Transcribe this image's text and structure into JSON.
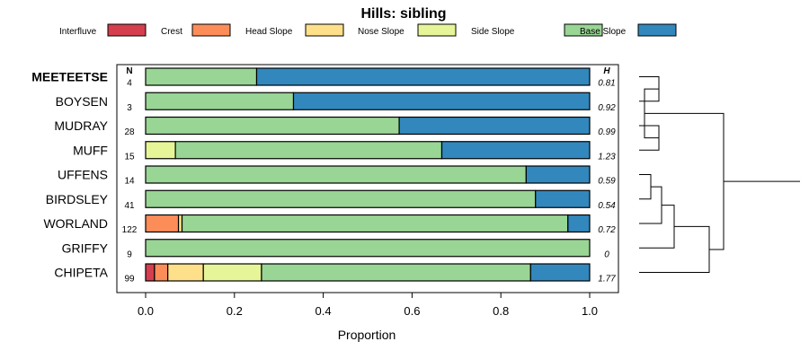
{
  "chart_data": {
    "type": "bar",
    "orientation": "horizontal",
    "stacked": true,
    "title": "Hills: sibling",
    "xlabel": "Proportion",
    "xlim": [
      0,
      1
    ],
    "xticks": [
      "0.0",
      "0.2",
      "0.4",
      "0.6",
      "0.8",
      "1.0"
    ],
    "n_header": "N",
    "h_header": "H",
    "classes": [
      {
        "name": "Interfluve",
        "color": "#d53e4f"
      },
      {
        "name": "Crest",
        "color": "#fc8d59"
      },
      {
        "name": "Head Slope",
        "color": "#fee08b"
      },
      {
        "name": "Nose Slope",
        "color": "#e6f598"
      },
      {
        "name": "Side Slope",
        "color": "#99d594"
      },
      {
        "name": "Base Slope",
        "color": "#3288bd"
      }
    ],
    "rows": [
      {
        "name": "MEETEETSE",
        "bold": true,
        "n": "4",
        "h": "0.81",
        "values": [
          0,
          0,
          0,
          0,
          0.25,
          0.75
        ]
      },
      {
        "name": "BOYSEN",
        "bold": false,
        "n": "3",
        "h": "0.92",
        "values": [
          0,
          0,
          0,
          0,
          0.333,
          0.667
        ]
      },
      {
        "name": "MUDRAY",
        "bold": false,
        "n": "28",
        "h": "0.99",
        "values": [
          0,
          0,
          0,
          0,
          0.571,
          0.429
        ]
      },
      {
        "name": "MUFF",
        "bold": false,
        "n": "15",
        "h": "1.23",
        "values": [
          0,
          0,
          0,
          0.067,
          0.6,
          0.333
        ]
      },
      {
        "name": "UFFENS",
        "bold": false,
        "n": "14",
        "h": "0.59",
        "values": [
          0,
          0,
          0,
          0,
          0.857,
          0.143
        ]
      },
      {
        "name": "BIRDSLEY",
        "bold": false,
        "n": "41",
        "h": "0.54",
        "values": [
          0,
          0,
          0,
          0,
          0.878,
          0.122
        ]
      },
      {
        "name": "WORLAND",
        "bold": false,
        "n": "122",
        "h": "0.72",
        "values": [
          0,
          0.074,
          0.008,
          0,
          0.869,
          0.049
        ]
      },
      {
        "name": "GRIFFY",
        "bold": false,
        "n": "9",
        "h": "0",
        "values": [
          0,
          0,
          0,
          0,
          1.0,
          0
        ]
      },
      {
        "name": "CHIPETA",
        "bold": false,
        "n": "99",
        "h": "1.77",
        "values": [
          0.02,
          0.03,
          0.08,
          0.131,
          0.606,
          0.133
        ]
      }
    ],
    "dendrogram": [
      [
        0,
        1
      ],
      [
        2,
        3
      ],
      [
        9,
        10
      ],
      [
        4,
        5
      ],
      [
        12,
        6
      ],
      [
        13,
        7
      ],
      [
        14,
        8
      ],
      [
        11,
        15
      ]
    ]
  }
}
